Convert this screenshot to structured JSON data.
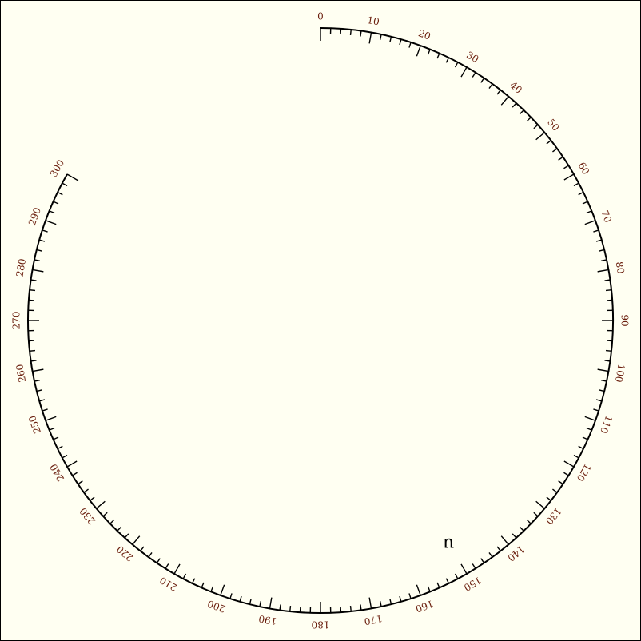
{
  "dial": {
    "start_degree": 0,
    "end_degree": 300,
    "minor_step": 2,
    "major_step": 10,
    "labels": [
      "0",
      "10",
      "20",
      "30",
      "40",
      "50",
      "60",
      "70",
      "80",
      "90",
      "100",
      "110",
      "120",
      "130",
      "140",
      "150",
      "160",
      "170",
      "180",
      "190",
      "200",
      "210",
      "220",
      "230",
      "240",
      "250",
      "260",
      "270",
      "280",
      "290",
      "300"
    ],
    "label_color": "#6b1f0e",
    "background_color": "#fffff2"
  },
  "annotation": {
    "text": "u"
  }
}
